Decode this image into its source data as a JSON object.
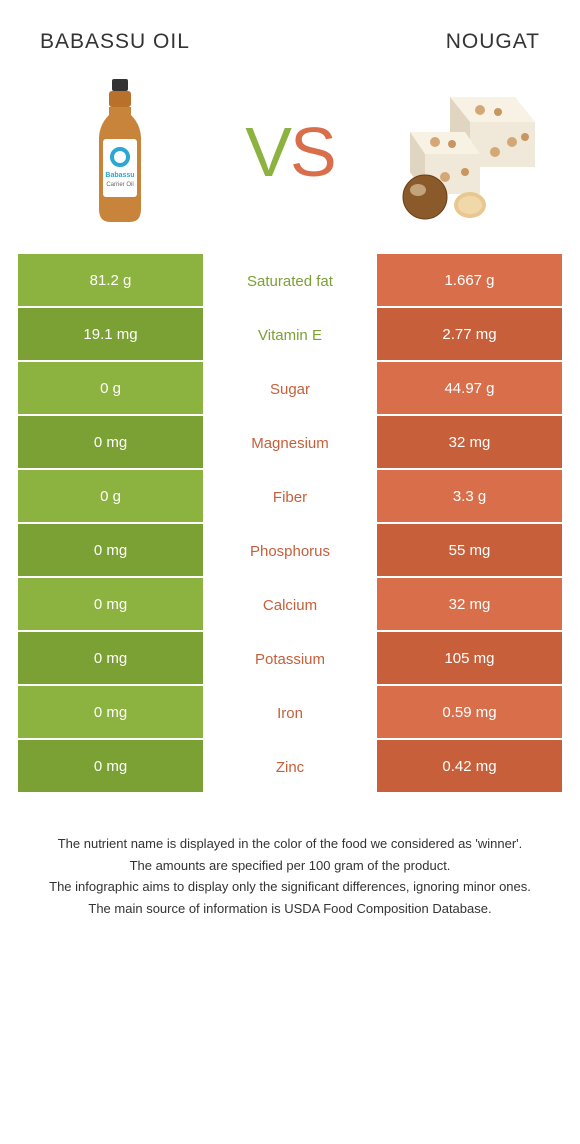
{
  "leftTitle": "Babassu oil",
  "rightTitle": "Nougat",
  "vsV": "V",
  "vsS": "S",
  "colors": {
    "green": "#8cb23f",
    "greenDark": "#7ba033",
    "orange": "#d86f4a",
    "orangeDark": "#c75f3a"
  },
  "rows": [
    {
      "left": "81.2 g",
      "label": "Saturated fat",
      "right": "1.667 g",
      "winner": "left"
    },
    {
      "left": "19.1 mg",
      "label": "Vitamin E",
      "right": "2.77 mg",
      "winner": "left"
    },
    {
      "left": "0 g",
      "label": "Sugar",
      "right": "44.97 g",
      "winner": "right"
    },
    {
      "left": "0 mg",
      "label": "Magnesium",
      "right": "32 mg",
      "winner": "right"
    },
    {
      "left": "0 g",
      "label": "Fiber",
      "right": "3.3 g",
      "winner": "right"
    },
    {
      "left": "0 mg",
      "label": "Phosphorus",
      "right": "55 mg",
      "winner": "right"
    },
    {
      "left": "0 mg",
      "label": "Calcium",
      "right": "32 mg",
      "winner": "right"
    },
    {
      "left": "0 mg",
      "label": "Potassium",
      "right": "105 mg",
      "winner": "right"
    },
    {
      "left": "0 mg",
      "label": "Iron",
      "right": "0.59 mg",
      "winner": "right"
    },
    {
      "left": "0 mg",
      "label": "Zinc",
      "right": "0.42 mg",
      "winner": "right"
    }
  ],
  "footer": [
    "The nutrient name is displayed in the color of the food we considered as 'winner'.",
    "The amounts are specified per 100 gram of the product.",
    "The infographic aims to display only the significant differences, ignoring minor ones.",
    "The main source of information is USDA Food Composition Database."
  ]
}
